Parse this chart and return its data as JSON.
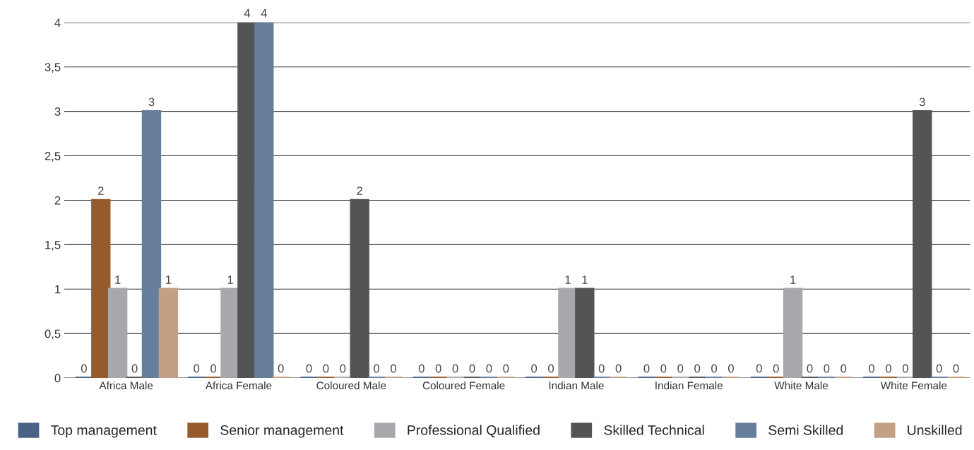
{
  "chart_data": {
    "type": "bar",
    "categories": [
      "Africa Male",
      "Africa Female",
      "Coloured Male",
      "Coloured Female",
      "Indian Male",
      "Indian Female",
      "White Male",
      "White Female"
    ],
    "series": [
      {
        "name": "Top management",
        "color": "#4a6285",
        "values": [
          0,
          0,
          0,
          0,
          0,
          0,
          0,
          0
        ]
      },
      {
        "name": "Senior management",
        "color": "#955b2c",
        "values": [
          2,
          0,
          0,
          0,
          0,
          0,
          0,
          0
        ]
      },
      {
        "name": "Professional Qualified",
        "color": "#a7a8ab",
        "values": [
          1,
          1,
          0,
          0,
          1,
          0,
          1,
          0
        ]
      },
      {
        "name": "Skilled Technical",
        "color": "#535456",
        "values": [
          0,
          4,
          2,
          0,
          1,
          0,
          0,
          3
        ]
      },
      {
        "name": "Semi Skilled",
        "color": "#667d9c",
        "values": [
          3,
          4,
          0,
          0,
          0,
          0,
          0,
          0
        ]
      },
      {
        "name": "Unskilled",
        "color": "#c3a083",
        "values": [
          1,
          0,
          0,
          0,
          0,
          0,
          0,
          0
        ]
      }
    ],
    "ylim": [
      0,
      4
    ],
    "yticks": [
      0,
      {
        "value": 0.5,
        "label": "0,5"
      },
      1,
      {
        "value": 1.5,
        "label": "1,5"
      },
      2,
      {
        "value": 2.5,
        "label": "2,5"
      },
      3,
      {
        "value": 3.5,
        "label": "3,5"
      },
      4
    ],
    "grid": "y",
    "legend": "bottom",
    "data_labels": true
  }
}
